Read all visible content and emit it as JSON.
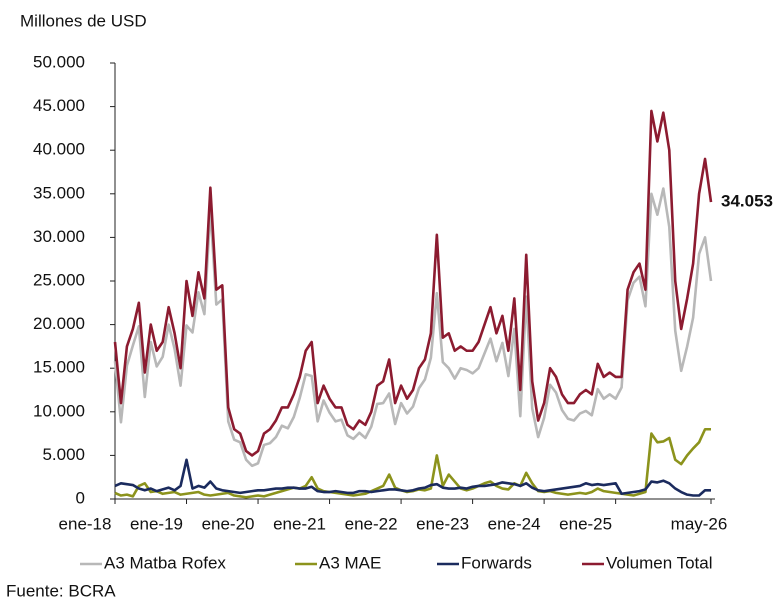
{
  "chart_data": {
    "type": "line",
    "ylabel": "Millones de USD",
    "source": "Fuente: BCRA",
    "categories": [
      "ene-18",
      null,
      null,
      null,
      null,
      null,
      null,
      null,
      null,
      null,
      null,
      null,
      "ene-19",
      null,
      null,
      null,
      null,
      null,
      null,
      null,
      null,
      null,
      null,
      null,
      "ene-20",
      null,
      null,
      null,
      null,
      null,
      null,
      null,
      null,
      null,
      null,
      null,
      "ene-21",
      null,
      null,
      null,
      null,
      null,
      null,
      null,
      null,
      null,
      null,
      null,
      "ene-22",
      null,
      null,
      null,
      null,
      null,
      null,
      null,
      null,
      null,
      null,
      null,
      "ene-23",
      null,
      null,
      null,
      null,
      null,
      null,
      null,
      null,
      null,
      null,
      null,
      "ene-24",
      null,
      null,
      null,
      null,
      null,
      null,
      null,
      null,
      null,
      null,
      null,
      "ene-25",
      null,
      null,
      null,
      null,
      null,
      null,
      null,
      null,
      null,
      null,
      null,
      null,
      null,
      null,
      null,
      "may-26"
    ],
    "ylim": [
      0,
      50000
    ],
    "yticks": [
      0,
      {
        "value": 5000,
        "label": "5.000"
      },
      {
        "value": 10000,
        "label": "10.000"
      },
      {
        "value": 15000,
        "label": "15.000"
      },
      {
        "value": 20000,
        "label": "20.000"
      },
      {
        "value": 25000,
        "label": "25.000"
      },
      {
        "value": 30000,
        "label": "30.000"
      },
      {
        "value": 35000,
        "label": "35.000"
      },
      {
        "value": 40000,
        "label": "40.000"
      },
      {
        "value": 45000,
        "label": "45.000"
      },
      {
        "value": 50000,
        "label": "50.000"
      }
    ],
    "grid": false,
    "legend": "bottom",
    "series": [
      {
        "name": "A3 Matba Rofex",
        "color": "#b8b8b8",
        "values": [
          15800,
          8800,
          15300,
          17600,
          19800,
          11700,
          18000,
          15200,
          16300,
          20000,
          17200,
          13000,
          19900,
          19100,
          23700,
          21200,
          33300,
          22300,
          22900,
          8900,
          6800,
          6500,
          4500,
          3800,
          4100,
          6200,
          6400,
          7100,
          8400,
          8100,
          9400,
          11600,
          14300,
          14100,
          8900,
          11300,
          9900,
          8900,
          9100,
          7300,
          6900,
          7600,
          7000,
          8300,
          10900,
          11000,
          12100,
          8600,
          11000,
          9800,
          10600,
          12700,
          13700,
          16200,
          23600,
          15700,
          15000,
          13800,
          15000,
          14800,
          14400,
          15000,
          16700,
          18400,
          15800,
          17900,
          14100,
          19500,
          9500,
          23200,
          10400,
          7100,
          9300,
          13100,
          12200,
          10200,
          9200,
          9000,
          9800,
          10100,
          9600,
          12600,
          11500,
          12000,
          11500,
          12800,
          22800,
          24800,
          25500,
          22100,
          35000,
          32600,
          35600,
          31200,
          19300,
          14700,
          17500,
          20800,
          28100,
          30000,
          25000
        ]
      },
      {
        "name": "A3 MAE",
        "color": "#8c931c",
        "values": [
          700,
          400,
          500,
          300,
          1500,
          1800,
          800,
          900,
          600,
          700,
          800,
          500,
          600,
          700,
          800,
          500,
          400,
          500,
          600,
          700,
          400,
          300,
          200,
          300,
          400,
          300,
          500,
          700,
          900,
          1100,
          1300,
          1200,
          1500,
          2500,
          1200,
          900,
          800,
          700,
          600,
          500,
          400,
          500,
          600,
          900,
          1200,
          1500,
          2800,
          1300,
          1000,
          800,
          900,
          1100,
          1000,
          1200,
          5000,
          1500,
          2800,
          2000,
          1200,
          1000,
          1200,
          1500,
          1800,
          2000,
          1500,
          1200,
          1100,
          1800,
          1500,
          3000,
          1800,
          900,
          800,
          900,
          700,
          600,
          500,
          600,
          700,
          600,
          800,
          1200,
          900,
          800,
          700,
          600,
          500,
          400,
          600,
          800,
          7500,
          6500,
          6600,
          7000,
          4500,
          4000,
          5000,
          5800,
          6500,
          8000,
          8000
        ]
      },
      {
        "name": "Forwards",
        "color": "#1b2b5e",
        "values": [
          1500,
          1800,
          1700,
          1600,
          1200,
          1000,
          1200,
          900,
          1100,
          1300,
          1000,
          1500,
          4500,
          1200,
          1500,
          1300,
          2000,
          1200,
          1000,
          900,
          800,
          700,
          800,
          900,
          1000,
          1000,
          1100,
          1200,
          1200,
          1300,
          1300,
          1200,
          1200,
          1400,
          900,
          800,
          800,
          900,
          800,
          700,
          700,
          900,
          900,
          800,
          900,
          1000,
          1100,
          1100,
          1000,
          900,
          1000,
          1200,
          1300,
          1600,
          1700,
          1300,
          1200,
          1200,
          1300,
          1200,
          1400,
          1500,
          1500,
          1600,
          1700,
          1900,
          1800,
          1700,
          1500,
          1800,
          1300,
          1000,
          900,
          1000,
          1100,
          1200,
          1300,
          1400,
          1500,
          1800,
          1600,
          1700,
          1600,
          1700,
          1800,
          600,
          700,
          800,
          900,
          1100,
          2000,
          1900,
          2100,
          1800,
          1200,
          800,
          500,
          400,
          400,
          1000,
          1000
        ]
      },
      {
        "name": "Volumen Total",
        "color": "#8c1b30",
        "values": [
          18000,
          11000,
          17500,
          19500,
          22500,
          14500,
          20000,
          17000,
          18000,
          22000,
          19000,
          15000,
          25000,
          21000,
          26000,
          23000,
          35700,
          24000,
          24500,
          10500,
          8000,
          7500,
          5500,
          5000,
          5500,
          7500,
          8000,
          9000,
          10500,
          10500,
          12000,
          14000,
          17000,
          18000,
          11000,
          13000,
          11500,
          10500,
          10500,
          8500,
          8000,
          9000,
          8500,
          10000,
          13000,
          13500,
          16000,
          11000,
          13000,
          11500,
          12500,
          15000,
          16000,
          19000,
          30300,
          18500,
          19000,
          17000,
          17500,
          17000,
          17000,
          18000,
          20000,
          22000,
          19000,
          21000,
          17000,
          23000,
          12500,
          28000,
          13500,
          9000,
          11000,
          15000,
          14000,
          12000,
          11000,
          11000,
          12000,
          12500,
          12000,
          15500,
          14000,
          14500,
          14000,
          14000,
          24000,
          26000,
          27000,
          24000,
          44500,
          41000,
          44300,
          40000,
          25000,
          19500,
          23000,
          27000,
          35000,
          39000,
          34053
        ],
        "value_labels": [
          null,
          null,
          null,
          null,
          null,
          null,
          null,
          null,
          null,
          null,
          null,
          null,
          null,
          null,
          null,
          null,
          null,
          null,
          null,
          null,
          null,
          null,
          null,
          null,
          null,
          null,
          null,
          null,
          null,
          null,
          null,
          null,
          null,
          null,
          null,
          null,
          null,
          null,
          null,
          null,
          null,
          null,
          null,
          null,
          null,
          null,
          null,
          null,
          null,
          null,
          null,
          null,
          null,
          null,
          null,
          null,
          null,
          null,
          null,
          null,
          null,
          null,
          null,
          null,
          null,
          null,
          null,
          null,
          null,
          null,
          null,
          null,
          null,
          null,
          null,
          null,
          null,
          null,
          null,
          null,
          null,
          null,
          null,
          null,
          null,
          null,
          null,
          null,
          null,
          null,
          null,
          null,
          null,
          null,
          null,
          null,
          null,
          null,
          null,
          null,
          "34.053"
        ]
      }
    ]
  }
}
